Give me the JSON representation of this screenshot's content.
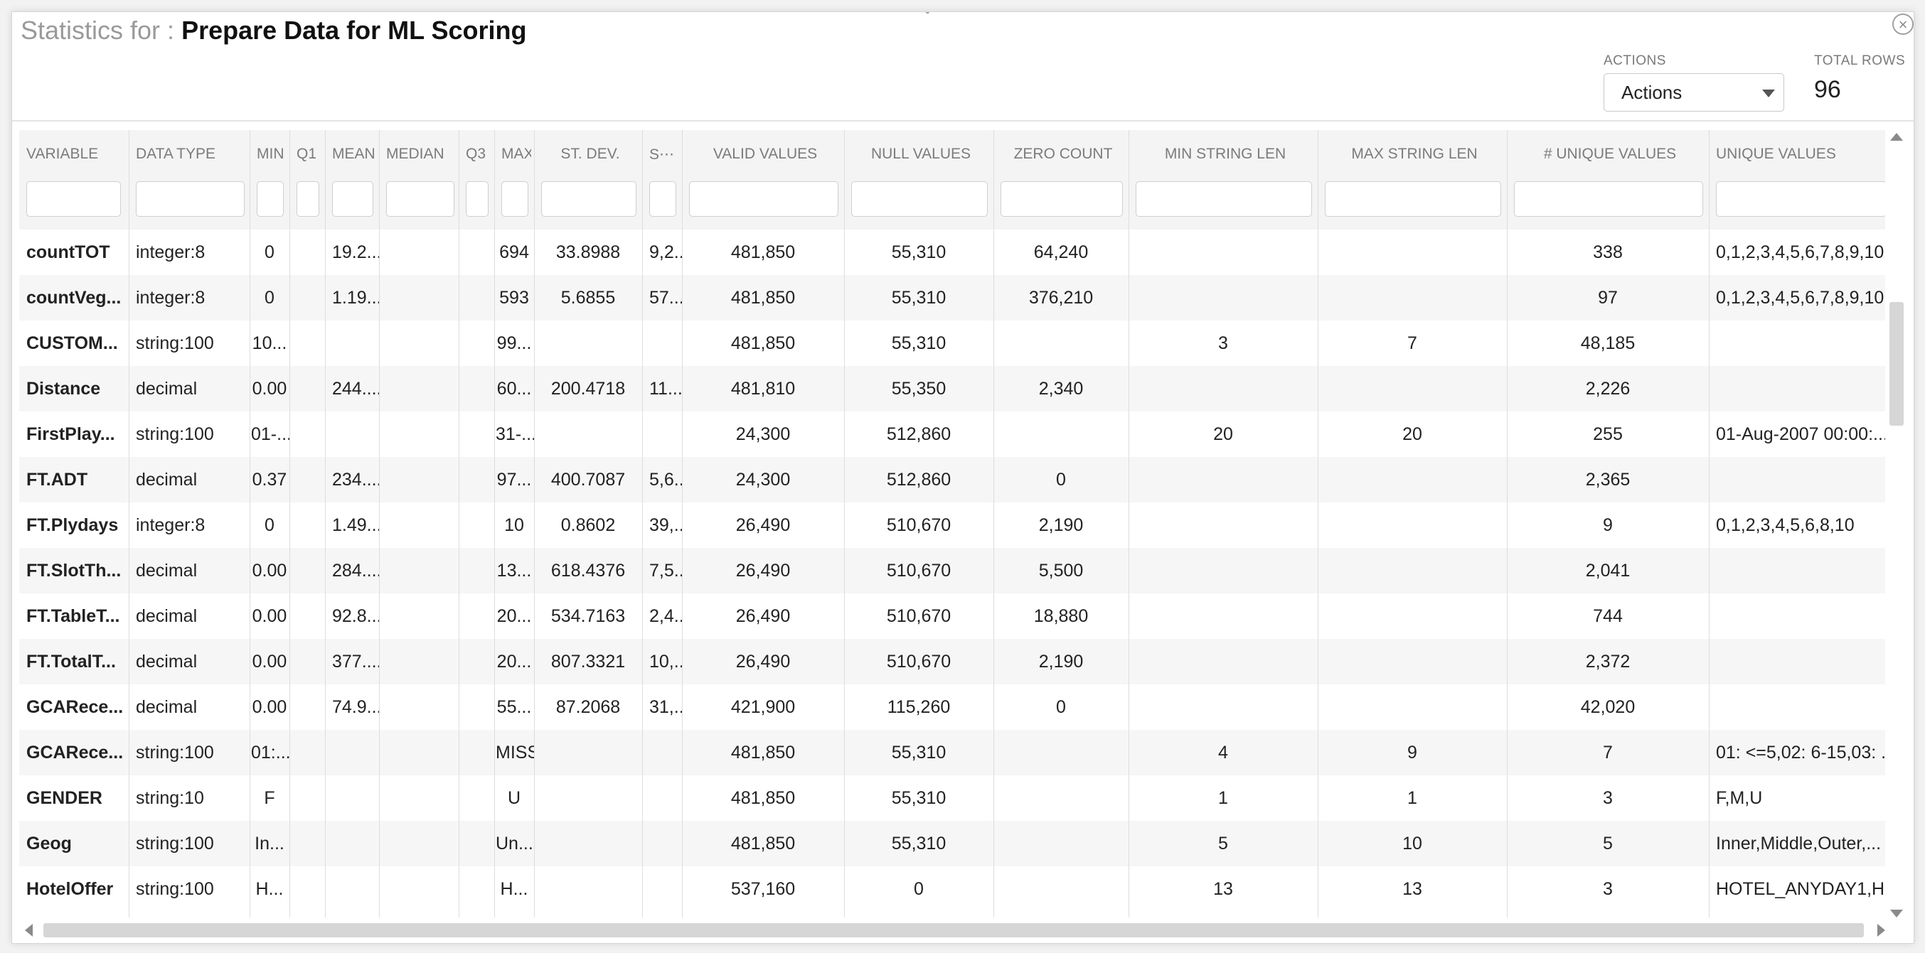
{
  "dialog": {
    "title_prefix": "Statistics for : ",
    "title_name": "Prepare Data for ML Scoring",
    "close_glyph": "×",
    "collapse_glyph": "ˇ"
  },
  "actions": {
    "label": "ACTIONS",
    "selected": "Actions"
  },
  "total_rows": {
    "label": "TOTAL ROWS",
    "value": "96"
  },
  "columns": [
    "VARIABLE",
    "DATA TYPE",
    "MIN",
    "Q1",
    "MEAN",
    "MEDIAN",
    "Q3",
    "MAX",
    "ST. DEV.",
    "S⋯",
    "VALID VALUES",
    "NULL VALUES",
    "ZERO COUNT",
    "MIN STRING LEN",
    "MAX STRING LEN",
    "# UNIQUE VALUES",
    "UNIQUE VALUES"
  ],
  "rows": [
    [
      "countTOT",
      "integer:8",
      "0",
      "",
      "19.2...",
      "",
      "",
      "694",
      "33.8988",
      "9,2...",
      "481,850",
      "55,310",
      "64,240",
      "",
      "",
      "338",
      "0,1,2,3,4,5,6,7,8,9,10..."
    ],
    [
      "countVeg...",
      "integer:8",
      "0",
      "",
      "1.19...",
      "",
      "",
      "593",
      "5.6855",
      "57...",
      "481,850",
      "55,310",
      "376,210",
      "",
      "",
      "97",
      "0,1,2,3,4,5,6,7,8,9,10..."
    ],
    [
      "CUSTOM...",
      "string:100",
      "10...",
      "",
      "",
      "",
      "",
      "99...",
      "",
      "",
      "481,850",
      "55,310",
      "",
      "3",
      "7",
      "48,185",
      ""
    ],
    [
      "Distance",
      "decimal",
      "0.00",
      "",
      "244....",
      "",
      "",
      "60...",
      "200.4718",
      "11...",
      "481,810",
      "55,350",
      "2,340",
      "",
      "",
      "2,226",
      ""
    ],
    [
      "FirstPlay...",
      "string:100",
      "01-...",
      "",
      "",
      "",
      "",
      "31-...",
      "",
      "",
      "24,300",
      "512,860",
      "",
      "20",
      "20",
      "255",
      "01-Aug-2007 00:00:..."
    ],
    [
      "FT.ADT",
      "decimal",
      "0.37",
      "",
      "234....",
      "",
      "",
      "97...",
      "400.7087",
      "5,6...",
      "24,300",
      "512,860",
      "0",
      "",
      "",
      "2,365",
      ""
    ],
    [
      "FT.Plydays",
      "integer:8",
      "0",
      "",
      "1.49...",
      "",
      "",
      "10",
      "0.8602",
      "39,...",
      "26,490",
      "510,670",
      "2,190",
      "",
      "",
      "9",
      "0,1,2,3,4,5,6,8,10"
    ],
    [
      "FT.SlotTh...",
      "decimal",
      "0.00",
      "",
      "284....",
      "",
      "",
      "13...",
      "618.4376",
      "7,5...",
      "26,490",
      "510,670",
      "5,500",
      "",
      "",
      "2,041",
      ""
    ],
    [
      "FT.TableT...",
      "decimal",
      "0.00",
      "",
      "92.8...",
      "",
      "",
      "20...",
      "534.7163",
      "2,4...",
      "26,490",
      "510,670",
      "18,880",
      "",
      "",
      "744",
      ""
    ],
    [
      "FT.TotalT...",
      "decimal",
      "0.00",
      "",
      "377....",
      "",
      "",
      "20...",
      "807.3321",
      "10,...",
      "26,490",
      "510,670",
      "2,190",
      "",
      "",
      "2,372",
      ""
    ],
    [
      "GCARece...",
      "decimal",
      "0.00",
      "",
      "74.9...",
      "",
      "",
      "55...",
      "87.2068",
      "31,...",
      "421,900",
      "115,260",
      "0",
      "",
      "",
      "42,020",
      ""
    ],
    [
      "GCARece...",
      "string:100",
      "01:...",
      "",
      "",
      "",
      "",
      "MISS",
      "",
      "",
      "481,850",
      "55,310",
      "",
      "4",
      "9",
      "7",
      "01: <=5,02: 6-15,03: ..."
    ],
    [
      "GENDER",
      "string:10",
      "F",
      "",
      "",
      "",
      "",
      "U",
      "",
      "",
      "481,850",
      "55,310",
      "",
      "1",
      "1",
      "3",
      "F,M,U"
    ],
    [
      "Geog",
      "string:100",
      "In...",
      "",
      "",
      "",
      "",
      "Un...",
      "",
      "",
      "481,850",
      "55,310",
      "",
      "5",
      "10",
      "5",
      "Inner,Middle,Outer,..."
    ],
    [
      "HotelOffer",
      "string:100",
      "H...",
      "",
      "",
      "",
      "",
      "H...",
      "",
      "",
      "537,160",
      "0",
      "",
      "13",
      "13",
      "3",
      "HOTEL_ANYDAY1,H..."
    ]
  ]
}
